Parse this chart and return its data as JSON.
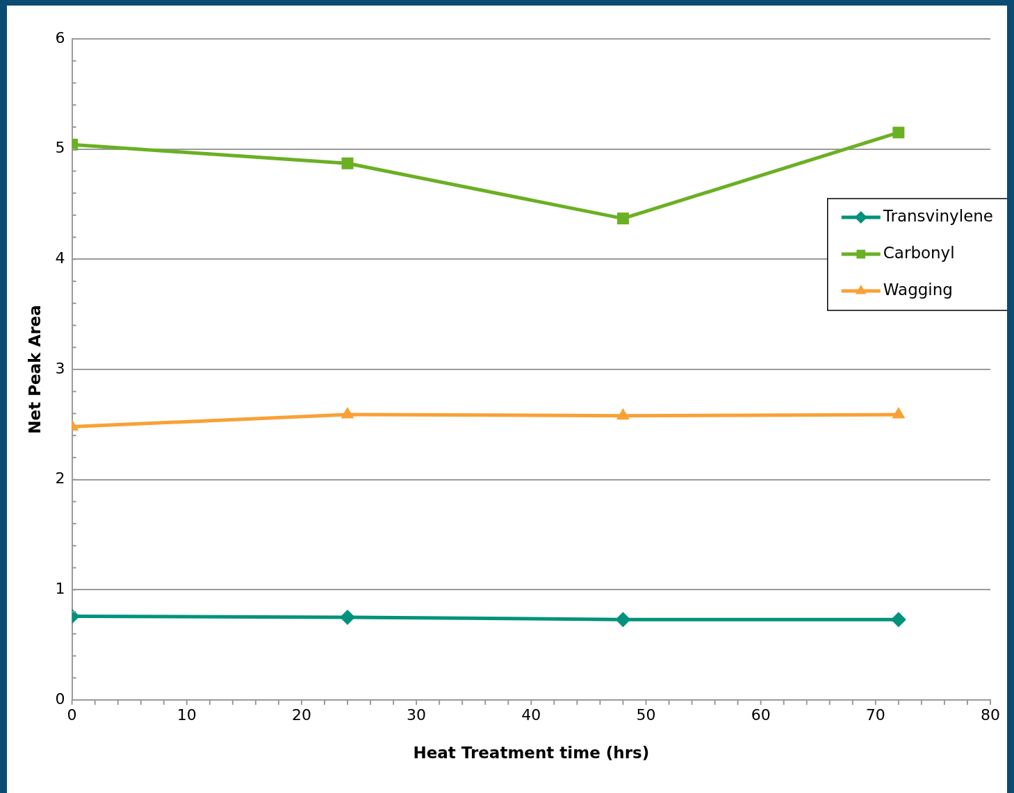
{
  "chart_data": {
    "type": "line",
    "xlabel": "Heat Treatment time (hrs)",
    "ylabel": "Net Peak Area",
    "x": [
      0,
      24,
      48,
      72
    ],
    "series": [
      {
        "name": "Transvinylene",
        "color": "#00927b",
        "marker": "diamond",
        "values": [
          0.76,
          0.75,
          0.73,
          0.73
        ]
      },
      {
        "name": "Carbonyl",
        "color": "#6ab023",
        "marker": "square",
        "values": [
          5.04,
          4.87,
          4.37,
          5.15
        ]
      },
      {
        "name": "Wagging",
        "color": "#f9a136",
        "marker": "triangle",
        "values": [
          2.48,
          2.59,
          2.58,
          2.59
        ]
      }
    ],
    "xlim": [
      0,
      80
    ],
    "xticks": [
      0,
      10,
      20,
      30,
      40,
      50,
      60,
      70,
      80
    ],
    "ylim": [
      0,
      6
    ],
    "yticks": [
      0,
      1,
      2,
      3,
      4,
      5,
      6
    ],
    "grid": "y",
    "legend": "right",
    "line_style": "solid"
  }
}
